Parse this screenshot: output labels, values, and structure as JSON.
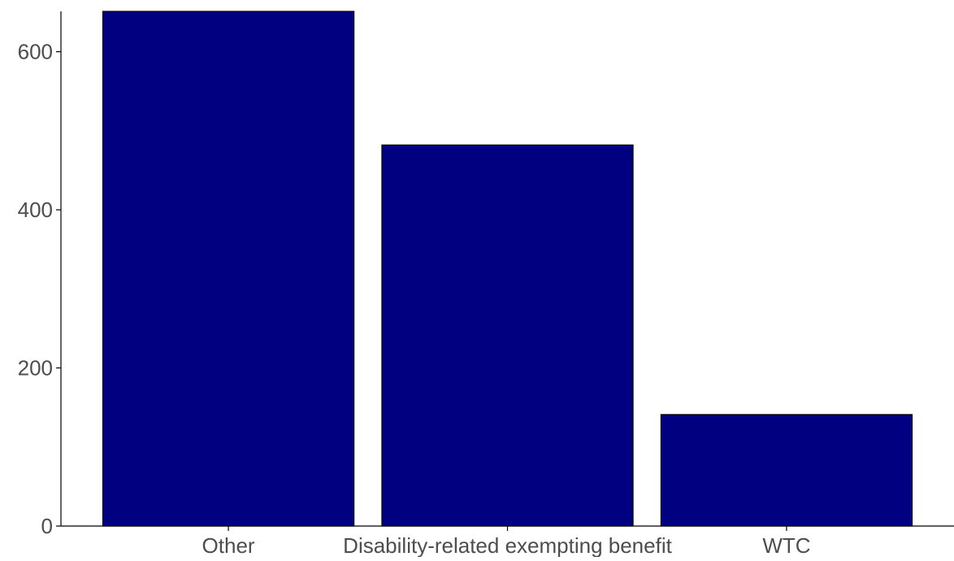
{
  "chart_data": {
    "type": "bar",
    "title": "",
    "xlabel": "",
    "ylabel": "",
    "categories": [
      "Other",
      "Disability-related exempting benefit",
      "WTC"
    ],
    "values": [
      651,
      482,
      141
    ],
    "ylim": [
      0,
      651
    ],
    "yticks": [
      "0",
      "200",
      "400",
      "600"
    ],
    "grid": false,
    "legend": "none",
    "bar_color": "#000080",
    "bar_outline_color": "#000000",
    "axis_color": "#000000",
    "tick_label_color": "#4d4d4d"
  }
}
